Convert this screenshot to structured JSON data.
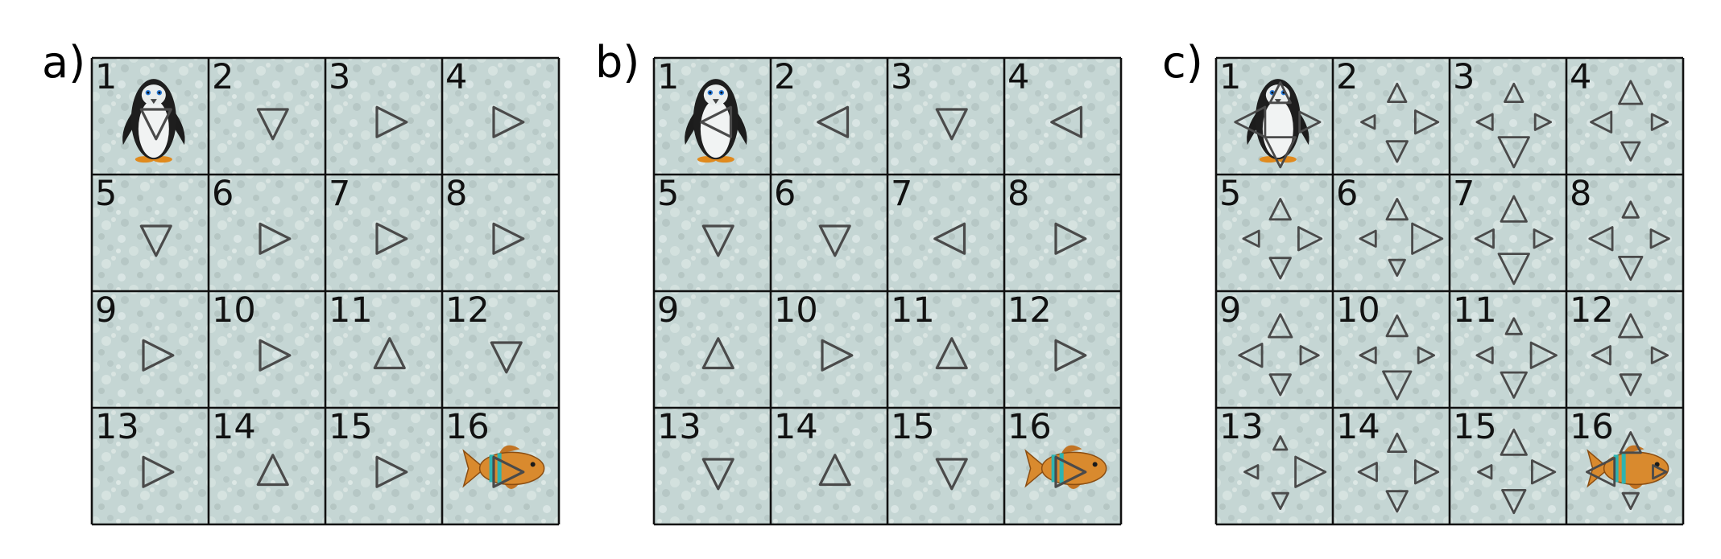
{
  "panels": [
    {
      "label": "a)",
      "mode": "single",
      "cells": [
        {
          "n": "1",
          "dir": "down"
        },
        {
          "n": "2",
          "dir": "down"
        },
        {
          "n": "3",
          "dir": "right"
        },
        {
          "n": "4",
          "dir": "right"
        },
        {
          "n": "5",
          "dir": "down"
        },
        {
          "n": "6",
          "dir": "right"
        },
        {
          "n": "7",
          "dir": "right"
        },
        {
          "n": "8",
          "dir": "right"
        },
        {
          "n": "9",
          "dir": "right"
        },
        {
          "n": "10",
          "dir": "right"
        },
        {
          "n": "11",
          "dir": "up"
        },
        {
          "n": "12",
          "dir": "down"
        },
        {
          "n": "13",
          "dir": "right"
        },
        {
          "n": "14",
          "dir": "up"
        },
        {
          "n": "15",
          "dir": "right"
        },
        {
          "n": "16",
          "dir": "right"
        }
      ]
    },
    {
      "label": "b)",
      "mode": "single",
      "cells": [
        {
          "n": "1",
          "dir": "left"
        },
        {
          "n": "2",
          "dir": "left"
        },
        {
          "n": "3",
          "dir": "down"
        },
        {
          "n": "4",
          "dir": "left"
        },
        {
          "n": "5",
          "dir": "down"
        },
        {
          "n": "6",
          "dir": "down"
        },
        {
          "n": "7",
          "dir": "left"
        },
        {
          "n": "8",
          "dir": "right"
        },
        {
          "n": "9",
          "dir": "up"
        },
        {
          "n": "10",
          "dir": "right"
        },
        {
          "n": "11",
          "dir": "up"
        },
        {
          "n": "12",
          "dir": "right"
        },
        {
          "n": "13",
          "dir": "down"
        },
        {
          "n": "14",
          "dir": "up"
        },
        {
          "n": "15",
          "dir": "down"
        },
        {
          "n": "16",
          "dir": "right"
        }
      ]
    },
    {
      "label": "c)",
      "mode": "multi",
      "cells": [
        {
          "n": "1",
          "w": {
            "up": 0.5,
            "down": 0.9,
            "left": 0.9,
            "right": 0.5
          }
        },
        {
          "n": "2",
          "w": {
            "up": 0.4,
            "down": 0.5,
            "left": 0.2,
            "right": 0.6
          }
        },
        {
          "n": "3",
          "w": {
            "up": 0.4,
            "down": 0.9,
            "left": 0.3,
            "right": 0.3
          }
        },
        {
          "n": "4",
          "w": {
            "up": 0.6,
            "down": 0.4,
            "left": 0.5,
            "right": 0.3
          }
        },
        {
          "n": "5",
          "w": {
            "up": 0.5,
            "down": 0.5,
            "left": 0.3,
            "right": 0.6
          }
        },
        {
          "n": "6",
          "w": {
            "up": 0.5,
            "down": 0.3,
            "left": 0.3,
            "right": 0.9
          }
        },
        {
          "n": "7",
          "w": {
            "up": 0.7,
            "down": 0.9,
            "left": 0.4,
            "right": 0.4
          }
        },
        {
          "n": "8",
          "w": {
            "up": 0.3,
            "down": 0.6,
            "left": 0.6,
            "right": 0.4
          }
        },
        {
          "n": "9",
          "w": {
            "up": 0.6,
            "down": 0.5,
            "left": 0.6,
            "right": 0.4
          }
        },
        {
          "n": "10",
          "w": {
            "up": 0.5,
            "down": 0.8,
            "left": 0.3,
            "right": 0.3
          }
        },
        {
          "n": "11",
          "w": {
            "up": 0.3,
            "down": 0.7,
            "left": 0.3,
            "right": 0.7
          }
        },
        {
          "n": "12",
          "w": {
            "up": 0.6,
            "down": 0.5,
            "left": 0.4,
            "right": 0.3
          }
        },
        {
          "n": "13",
          "w": {
            "up": 0.2,
            "down": 0.3,
            "left": 0.2,
            "right": 0.9
          }
        },
        {
          "n": "14",
          "w": {
            "up": 0.4,
            "down": 0.5,
            "left": 0.4,
            "right": 0.6
          }
        },
        {
          "n": "15",
          "w": {
            "up": 0.7,
            "down": 0.6,
            "left": 0.2,
            "right": 0.6
          }
        },
        {
          "n": "16",
          "w": {
            "up": 0.5,
            "down": 0.3,
            "left": 0.8,
            "right": 0.2
          }
        }
      ]
    }
  ],
  "agent": {
    "icon": "penguin-icon",
    "cell": "1"
  },
  "goal": {
    "icon": "fish-icon",
    "cell": "16"
  },
  "colors": {
    "ice": "#c5d6d4",
    "ice_light": "#dde8e6",
    "grid": "#111111",
    "arrow": "#4a4a4a",
    "fish_body": "#d98a2e",
    "fish_stripe": "#2fb3b0"
  }
}
